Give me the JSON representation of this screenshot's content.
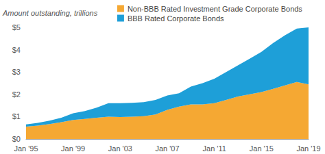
{
  "chart_data": {
    "type": "area",
    "ylabel": "Amount outstanding, trillions",
    "categories": [
      "Jan '95",
      null,
      null,
      null,
      "Jan '99",
      null,
      null,
      null,
      "Jan '03",
      null,
      null,
      null,
      "Jan '07",
      null,
      null,
      null,
      "Jan '11",
      null,
      null,
      null,
      "Jan '15",
      null,
      null,
      null,
      "Jan '19"
    ],
    "series": [
      {
        "name": "Non-BBB Rated Investment Grade Corporate Bonds",
        "color": "#f5a833",
        "values": [
          0.55,
          0.6,
          0.67,
          0.75,
          0.85,
          0.9,
          0.95,
          1.0,
          0.98,
          1.0,
          1.02,
          1.1,
          1.3,
          1.45,
          1.55,
          1.55,
          1.6,
          1.75,
          1.9,
          2.0,
          2.1,
          2.25,
          2.4,
          2.55,
          2.45
        ]
      },
      {
        "name": "BBB Rated Corporate Bonds",
        "color": "#1e9fd8",
        "values": [
          0.1,
          0.12,
          0.15,
          0.2,
          0.3,
          0.35,
          0.45,
          0.6,
          0.62,
          0.62,
          0.63,
          0.65,
          0.65,
          0.6,
          0.8,
          0.95,
          1.1,
          1.25,
          1.4,
          1.6,
          1.8,
          2.05,
          2.25,
          2.4,
          2.55
        ]
      }
    ],
    "stacked": true,
    "ylim": [
      0,
      5
    ],
    "yticks": [
      {
        "value": 0,
        "label": "$0"
      },
      {
        "value": 1,
        "label": "$1"
      },
      {
        "value": 2,
        "label": "$2"
      },
      {
        "value": 3,
        "label": "$3"
      },
      {
        "value": 4,
        "label": "$4"
      },
      {
        "value": 5,
        "label": "$5"
      }
    ],
    "grid": false,
    "legend": "top"
  }
}
